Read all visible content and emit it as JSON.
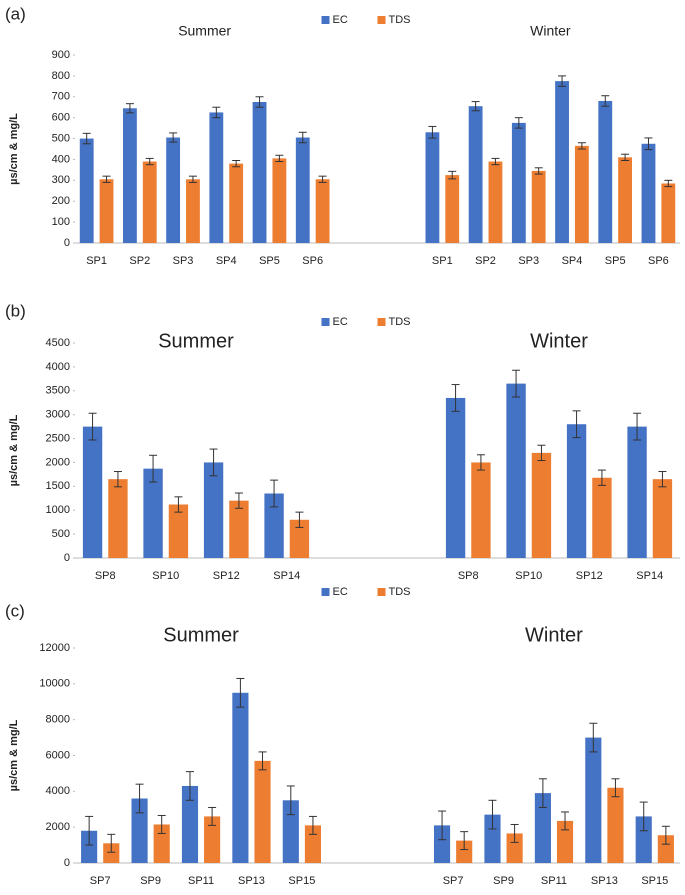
{
  "chart_data": [
    {
      "type": "bar",
      "label": "(a)",
      "annotations": [
        "Summer",
        "Winter"
      ],
      "y_label": "µs/cm & mg/L",
      "categories": [
        "SP1",
        "SP2",
        "SP3",
        "SP4",
        "SP5",
        "SP6",
        null,
        null,
        "SP1",
        "SP2",
        "SP3",
        "SP4",
        "SP5",
        "SP6"
      ],
      "series": [
        {
          "name": "EC",
          "color": "#4472c4",
          "values": [
            500,
            645,
            505,
            625,
            675,
            505,
            null,
            null,
            530,
            655,
            575,
            775,
            680,
            475
          ],
          "errors": [
            25,
            22,
            22,
            25,
            25,
            25,
            null,
            null,
            28,
            22,
            25,
            25,
            25,
            28
          ]
        },
        {
          "name": "TDS",
          "color": "#ed7d31",
          "values": [
            305,
            390,
            305,
            380,
            405,
            305,
            null,
            null,
            325,
            390,
            345,
            465,
            410,
            285
          ],
          "errors": [
            15,
            15,
            15,
            15,
            15,
            15,
            null,
            null,
            18,
            15,
            15,
            15,
            15,
            15
          ]
        }
      ],
      "ylim": [
        0,
        900
      ],
      "yticks": [
        0,
        100,
        200,
        300,
        400,
        500,
        600,
        700,
        800,
        900
      ],
      "grid": false,
      "legend": "top"
    },
    {
      "type": "bar",
      "label": "(b)",
      "annotations": [
        "Summer",
        "Winter"
      ],
      "y_label": "µs/cm & mg/L",
      "categories": [
        "SP8",
        "SP10",
        "SP12",
        "SP14",
        null,
        null,
        "SP8",
        "SP10",
        "SP12",
        "SP14"
      ],
      "series": [
        {
          "name": "EC",
          "color": "#4472c4",
          "values": [
            2750,
            1870,
            2000,
            1350,
            null,
            null,
            3350,
            3650,
            2800,
            2750
          ],
          "errors": [
            280,
            280,
            280,
            280,
            null,
            null,
            280,
            280,
            280,
            280
          ]
        },
        {
          "name": "TDS",
          "color": "#ed7d31",
          "values": [
            1650,
            1120,
            1200,
            800,
            null,
            null,
            2000,
            2200,
            1680,
            1650
          ],
          "errors": [
            160,
            160,
            160,
            160,
            null,
            null,
            160,
            160,
            160,
            160
          ]
        }
      ],
      "ylim": [
        0,
        4500
      ],
      "yticks": [
        0,
        500,
        1000,
        1500,
        2000,
        2500,
        3000,
        3500,
        4000,
        4500
      ],
      "grid": false,
      "legend": "top"
    },
    {
      "type": "bar",
      "label": "(c)",
      "annotations": [
        "Summer",
        "Winter"
      ],
      "y_label": "µs/cm & mg/L",
      "categories": [
        "SP7",
        "SP9",
        "SP11",
        "SP13",
        "SP15",
        null,
        null,
        "SP7",
        "SP9",
        "SP11",
        "SP13",
        "SP15"
      ],
      "series": [
        {
          "name": "EC",
          "color": "#4472c4",
          "values": [
            1800,
            3600,
            4300,
            9500,
            3500,
            null,
            null,
            2100,
            2700,
            3900,
            7000,
            2600
          ],
          "errors": [
            800,
            800,
            800,
            800,
            800,
            null,
            null,
            800,
            800,
            800,
            800,
            800
          ]
        },
        {
          "name": "TDS",
          "color": "#ed7d31",
          "values": [
            1100,
            2150,
            2600,
            5700,
            2100,
            null,
            null,
            1250,
            1650,
            2350,
            4200,
            1550
          ],
          "errors": [
            500,
            500,
            500,
            500,
            500,
            null,
            null,
            500,
            500,
            500,
            500,
            500
          ]
        }
      ],
      "ylim": [
        0,
        12000
      ],
      "yticks": [
        0,
        2000,
        4000,
        6000,
        8000,
        10000,
        12000
      ],
      "grid": false,
      "legend": "top"
    }
  ]
}
